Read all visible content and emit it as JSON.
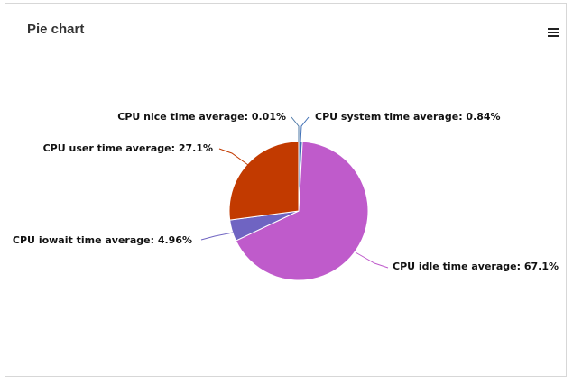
{
  "panel": {
    "title": "Pie chart",
    "menu_icon": "hamburger-menu-icon"
  },
  "chart_data": {
    "type": "pie",
    "title": "",
    "slices": [
      {
        "name": "CPU nice time average",
        "value": 0.01,
        "label": "CPU nice time average: 0.01%",
        "color": "#4e79a7"
      },
      {
        "name": "CPU system time average",
        "value": 0.84,
        "label": "CPU system time average: 0.84%",
        "color": "#3f6fb5"
      },
      {
        "name": "CPU idle time average",
        "value": 67.1,
        "label": "CPU idle time average: 67.1%",
        "color": "#bf5bcb"
      },
      {
        "name": "CPU iowait time average",
        "value": 4.96,
        "label": "CPU iowait time average: 4.96%",
        "color": "#6f64c2"
      },
      {
        "name": "CPU user time average",
        "value": 27.1,
        "label": "CPU user time average: 27.1%",
        "color": "#c23a00"
      }
    ]
  }
}
